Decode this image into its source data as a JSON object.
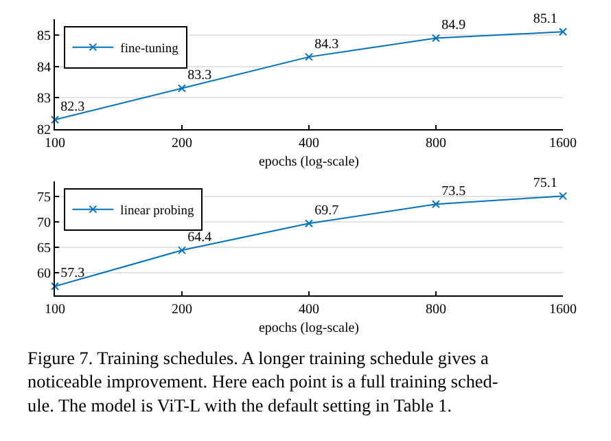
{
  "chart_data": [
    {
      "type": "line",
      "x": [
        100,
        200,
        400,
        800,
        1600
      ],
      "xlabel": "epochs (log-scale)",
      "log": "x",
      "xlim": [
        100,
        1600
      ],
      "xticks": [
        100,
        200,
        400,
        800,
        1600
      ],
      "ylim": [
        82,
        85.5
      ],
      "yticks": [
        82,
        83,
        84,
        85
      ],
      "grid": "y",
      "legend": "top left",
      "marker": "cross",
      "line_style": "solid",
      "data_labels": true,
      "series": [
        {
          "name": "fine-tuning",
          "color": "#0072bd",
          "values": [
            82.3,
            83.3,
            84.3,
            84.9,
            85.1
          ]
        }
      ]
    },
    {
      "type": "line",
      "x": [
        100,
        200,
        400,
        800,
        1600
      ],
      "xlabel": "epochs (log-scale)",
      "log": "x",
      "xlim": [
        100,
        1600
      ],
      "xticks": [
        100,
        200,
        400,
        800,
        1600
      ],
      "ylim": [
        55.5,
        78
      ],
      "yticks": [
        60,
        65,
        70,
        75
      ],
      "grid": "y",
      "legend": "top left",
      "marker": "cross",
      "line_style": "solid",
      "data_labels": true,
      "series": [
        {
          "name": "linear probing",
          "color": "#0072bd",
          "values": [
            57.3,
            64.4,
            69.7,
            73.5,
            75.1
          ]
        }
      ],
      "annotations": [
        "Figure 7. Training schedules. A longer training schedule gives a\nnoticeable improvement. Here each point is a full training sched-\nule. The model is ViT-L with the default setting in Table 1."
      ]
    }
  ]
}
